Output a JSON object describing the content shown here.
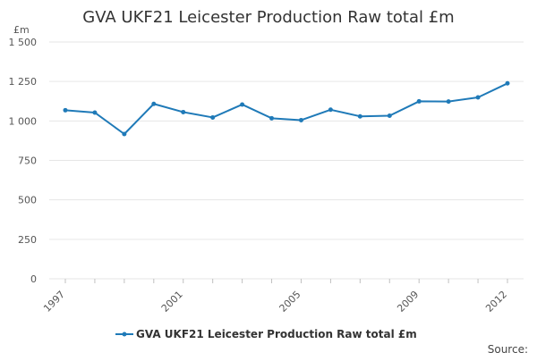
{
  "chart_data": {
    "type": "line",
    "title": "GVA UKF21 Leicester Production Raw total £m",
    "ylabel": "£m",
    "xlabel": "",
    "x": [
      1997,
      1998,
      1999,
      2000,
      2001,
      2002,
      2003,
      2004,
      2005,
      2006,
      2007,
      2008,
      2009,
      2010,
      2011,
      2012
    ],
    "series": [
      {
        "name": "GVA UKF21 Leicester Production Raw total £m",
        "color": "#1f7ab8",
        "values": [
          1068,
          1053,
          917,
          1108,
          1056,
          1022,
          1104,
          1017,
          1005,
          1071,
          1029,
          1033,
          1124,
          1123,
          1149,
          1238
        ]
      }
    ],
    "ylim": [
      0,
      1500
    ],
    "y_ticks": [
      0,
      250,
      500,
      750,
      1000,
      1250,
      1500
    ],
    "y_tick_labels": [
      "0",
      "250",
      "500",
      "750",
      "1 000",
      "1 250",
      "1 500"
    ],
    "x_tick_labels": [
      "1997",
      "2001",
      "2005",
      "2009",
      "2012"
    ],
    "x_tick_values": [
      1997,
      2001,
      2005,
      2009,
      2012
    ],
    "grid": true,
    "legend_position": "bottom",
    "source_text": "Source:"
  }
}
